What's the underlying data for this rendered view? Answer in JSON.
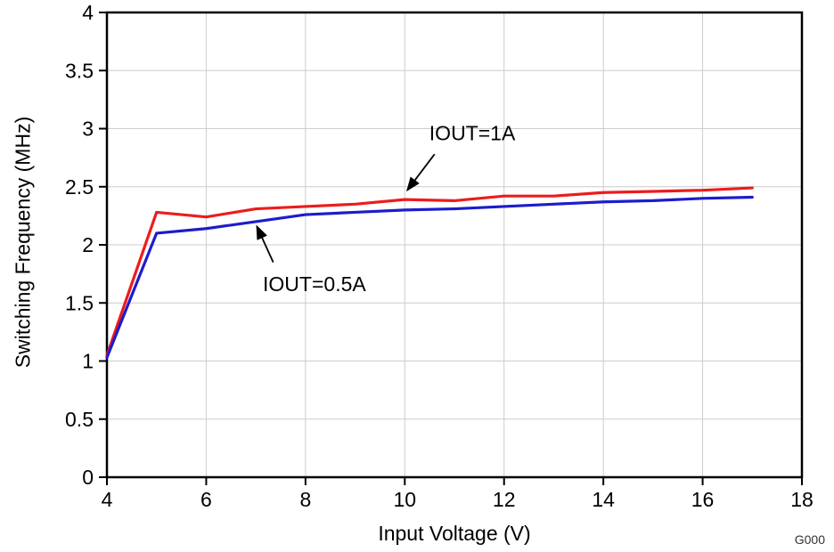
{
  "figure": {
    "background": "#ffffff",
    "figure_code": "G000"
  },
  "chart_data": {
    "type": "line",
    "title": "",
    "xlabel": "Input Voltage (V)",
    "ylabel": "Switching Frequency (MHz)",
    "xlim": [
      4,
      18
    ],
    "ylim": [
      0,
      4
    ],
    "xticks": [
      4,
      6,
      8,
      10,
      12,
      14,
      16,
      18
    ],
    "yticks": [
      0,
      0.5,
      1,
      1.5,
      2,
      2.5,
      3,
      3.5,
      4
    ],
    "grid": true,
    "grid_color": "#cccccc",
    "axis_color": "#000000",
    "legend_position": "inline-annotations",
    "x": [
      4,
      5,
      6,
      7,
      8,
      9,
      10,
      11,
      12,
      13,
      14,
      15,
      16,
      17
    ],
    "series": [
      {
        "name": "IOUT=1A",
        "color": "#ec1c1c",
        "values": [
          1.05,
          2.28,
          2.24,
          2.31,
          2.33,
          2.35,
          2.39,
          2.38,
          2.42,
          2.42,
          2.45,
          2.46,
          2.47,
          2.49
        ]
      },
      {
        "name": "IOUT=0.5A",
        "color": "#1c1ccd",
        "values": [
          1.03,
          2.1,
          2.14,
          2.2,
          2.26,
          2.28,
          2.3,
          2.31,
          2.33,
          2.35,
          2.37,
          2.38,
          2.4,
          2.41
        ]
      }
    ],
    "annotations": [
      {
        "text": "IOUT=1A",
        "text_x": 11.36,
        "text_y": 2.9,
        "arrow_from": [
          10.6,
          2.78
        ],
        "arrow_to": [
          10.05,
          2.47
        ]
      },
      {
        "text": "IOUT=0.5A",
        "text_x": 8.18,
        "text_y": 1.6,
        "arrow_from": [
          7.35,
          1.85
        ],
        "arrow_to": [
          7.02,
          2.16
        ]
      }
    ]
  }
}
